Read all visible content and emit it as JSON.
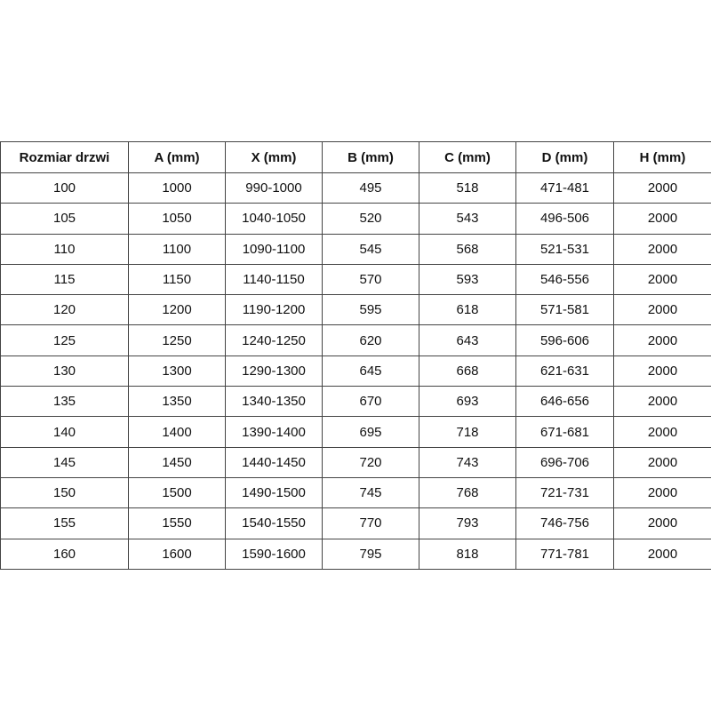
{
  "table": {
    "headers": [
      "Rozmiar drzwi",
      "A (mm)",
      "X (mm)",
      "B (mm)",
      "C (mm)",
      "D (mm)",
      "H (mm)"
    ],
    "rows": [
      [
        "100",
        "1000",
        "990-1000",
        "495",
        "518",
        "471-481",
        "2000"
      ],
      [
        "105",
        "1050",
        "1040-1050",
        "520",
        "543",
        "496-506",
        "2000"
      ],
      [
        "110",
        "1100",
        "1090-1100",
        "545",
        "568",
        "521-531",
        "2000"
      ],
      [
        "115",
        "1150",
        "1140-1150",
        "570",
        "593",
        "546-556",
        "2000"
      ],
      [
        "120",
        "1200",
        "1190-1200",
        "595",
        "618",
        "571-581",
        "2000"
      ],
      [
        "125",
        "1250",
        "1240-1250",
        "620",
        "643",
        "596-606",
        "2000"
      ],
      [
        "130",
        "1300",
        "1290-1300",
        "645",
        "668",
        "621-631",
        "2000"
      ],
      [
        "135",
        "1350",
        "1340-1350",
        "670",
        "693",
        "646-656",
        "2000"
      ],
      [
        "140",
        "1400",
        "1390-1400",
        "695",
        "718",
        "671-681",
        "2000"
      ],
      [
        "145",
        "1450",
        "1440-1450",
        "720",
        "743",
        "696-706",
        "2000"
      ],
      [
        "150",
        "1500",
        "1490-1500",
        "745",
        "768",
        "721-731",
        "2000"
      ],
      [
        "155",
        "1550",
        "1540-1550",
        "770",
        "793",
        "746-756",
        "2000"
      ],
      [
        "160",
        "1600",
        "1590-1600",
        "795",
        "818",
        "771-781",
        "2000"
      ]
    ]
  }
}
